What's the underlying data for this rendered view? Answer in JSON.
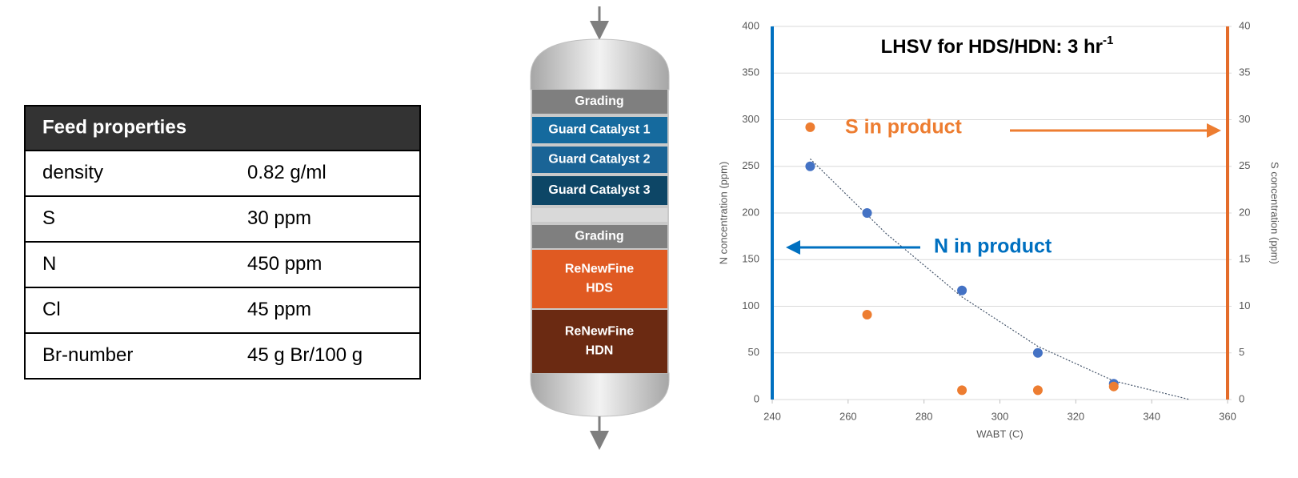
{
  "table": {
    "header": "Feed properties",
    "rows": [
      [
        "density",
        "0.82 g/ml"
      ],
      [
        "S",
        "30 ppm"
      ],
      [
        "N",
        "450 ppm"
      ],
      [
        "Cl",
        "45 ppm"
      ],
      [
        "Br-number",
        "45 g Br/100 g"
      ]
    ]
  },
  "reactor": {
    "layers": [
      [
        "Grading"
      ],
      [
        "Guard Catalyst 1"
      ],
      [
        "Guard Catalyst 2"
      ],
      [
        "Guard Catalyst 3"
      ],
      [
        "Grading"
      ],
      [
        "ReNewFine",
        "HDS"
      ],
      [
        "ReNewFine",
        "HDN"
      ]
    ]
  },
  "chart_data": {
    "type": "scatter",
    "title": "LHSV for HDS/HDN: 3 hr",
    "title_superscript": "-1",
    "x_label": "WABT (C)",
    "y_label": "N concentration (ppm)",
    "y2_label": "S concentration (ppm)",
    "annotations": [
      "S in product",
      "N in product"
    ],
    "series": [
      {
        "name": "N",
        "color": "#4472c4",
        "x": [
          250,
          265,
          290,
          310,
          330
        ],
        "values": [
          250,
          200,
          117,
          50,
          17
        ]
      },
      {
        "name": "S",
        "color": "#ed7d31",
        "axis": "y2",
        "x": [
          250,
          265,
          290,
          310,
          330
        ],
        "values": [
          29.2,
          9.1,
          1,
          1,
          1.4
        ]
      }
    ],
    "trendline": {
      "color": "#44546a",
      "x": [
        250,
        270,
        290,
        310,
        330,
        350
      ],
      "values": [
        258,
        178,
        110,
        57,
        20,
        0
      ]
    },
    "xlim": [
      240,
      360
    ],
    "xticks": [
      240,
      260,
      280,
      300,
      320,
      340,
      360
    ],
    "ylim": [
      0,
      400
    ],
    "yticks": [
      0,
      50,
      100,
      150,
      200,
      250,
      300,
      350,
      400
    ],
    "y2lim": [
      0,
      40
    ],
    "y2ticks": [
      0,
      5,
      10,
      15,
      20,
      25,
      30,
      35,
      40
    ],
    "grid": true,
    "y_axis_color": "#0070c0",
    "y2_axis_color": "#e46c2a"
  }
}
